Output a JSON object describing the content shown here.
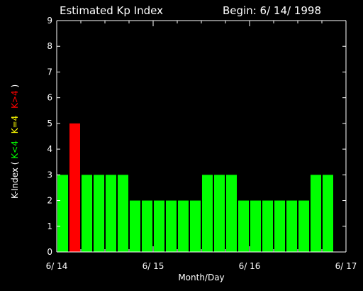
{
  "chart_data": {
    "type": "bar",
    "title": "Estimated Kp Index",
    "subtitle": "Begin: 6/ 14/ 1998",
    "xlabel": "Month/Day",
    "ylabel_prefix": "K-Index (",
    "ylabel_suffix": ")",
    "legend": [
      {
        "label": "K<4",
        "color": "#00ff00"
      },
      {
        "label": "K=4",
        "color": "#ffff00"
      },
      {
        "label": "K>4",
        "color": "#ff0000"
      }
    ],
    "ylim": [
      0,
      9
    ],
    "yticks": [
      "0",
      "1",
      "2",
      "3",
      "4",
      "5",
      "6",
      "7",
      "8",
      "9"
    ],
    "xticks": [
      "6/ 14",
      "6/ 15",
      "6/ 16",
      "6/ 17"
    ],
    "intervals_per_day": 8,
    "values": [
      3,
      5,
      3,
      3,
      3,
      3,
      2,
      2,
      2,
      2,
      2,
      2,
      3,
      3,
      3,
      2,
      2,
      2,
      2,
      2,
      2,
      3,
      3,
      0
    ]
  }
}
